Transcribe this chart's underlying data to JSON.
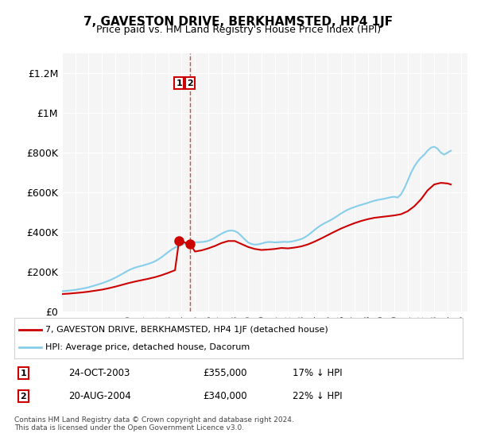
{
  "title": "7, GAVESTON DRIVE, BERKHAMSTED, HP4 1JF",
  "subtitle": "Price paid vs. HM Land Registry's House Price Index (HPI)",
  "ylabel_ticks": [
    "£0",
    "£200K",
    "£400K",
    "£600K",
    "£800K",
    "£1M",
    "£1.2M"
  ],
  "ytick_values": [
    0,
    200000,
    400000,
    600000,
    800000,
    1000000,
    1200000
  ],
  "ylim": [
    0,
    1300000
  ],
  "xlim_start": 1995.0,
  "xlim_end": 2025.5,
  "hpi_color": "#87CEEB",
  "price_color": "#CC0000",
  "dashed_line_color": "#CC0000",
  "background_color": "#f5f5f5",
  "legend_label_red": "7, GAVESTON DRIVE, BERKHAMSTED, HP4 1JF (detached house)",
  "legend_label_blue": "HPI: Average price, detached house, Dacorum",
  "transaction1_date": "24-OCT-2003",
  "transaction1_price": "£355,000",
  "transaction1_note": "17% ↓ HPI",
  "transaction2_date": "20-AUG-2004",
  "transaction2_price": "£340,000",
  "transaction2_note": "22% ↓ HPI",
  "footnote": "Contains HM Land Registry data © Crown copyright and database right 2024.\nThis data is licensed under the Open Government Licence v3.0.",
  "hpi_x": [
    1995.0,
    1995.25,
    1995.5,
    1995.75,
    1996.0,
    1996.25,
    1996.5,
    1996.75,
    1997.0,
    1997.25,
    1997.5,
    1997.75,
    1998.0,
    1998.25,
    1998.5,
    1998.75,
    1999.0,
    1999.25,
    1999.5,
    1999.75,
    2000.0,
    2000.25,
    2000.5,
    2000.75,
    2001.0,
    2001.25,
    2001.5,
    2001.75,
    2002.0,
    2002.25,
    2002.5,
    2002.75,
    2003.0,
    2003.25,
    2003.5,
    2003.75,
    2004.0,
    2004.25,
    2004.5,
    2004.75,
    2005.0,
    2005.25,
    2005.5,
    2005.75,
    2006.0,
    2006.25,
    2006.5,
    2006.75,
    2007.0,
    2007.25,
    2007.5,
    2007.75,
    2008.0,
    2008.25,
    2008.5,
    2008.75,
    2009.0,
    2009.25,
    2009.5,
    2009.75,
    2010.0,
    2010.25,
    2010.5,
    2010.75,
    2011.0,
    2011.25,
    2011.5,
    2011.75,
    2012.0,
    2012.25,
    2012.5,
    2012.75,
    2013.0,
    2013.25,
    2013.5,
    2013.75,
    2014.0,
    2014.25,
    2014.5,
    2014.75,
    2015.0,
    2015.25,
    2015.5,
    2015.75,
    2016.0,
    2016.25,
    2016.5,
    2016.75,
    2017.0,
    2017.25,
    2017.5,
    2017.75,
    2018.0,
    2018.25,
    2018.5,
    2018.75,
    2019.0,
    2019.25,
    2019.5,
    2019.75,
    2020.0,
    2020.25,
    2020.5,
    2020.75,
    2021.0,
    2021.25,
    2021.5,
    2021.75,
    2022.0,
    2022.25,
    2022.5,
    2022.75,
    2023.0,
    2023.25,
    2023.5,
    2023.75,
    2024.0,
    2024.25
  ],
  "hpi_y": [
    102000,
    103500,
    105000,
    107000,
    109000,
    112000,
    115000,
    118000,
    122000,
    127000,
    132000,
    137000,
    142000,
    148000,
    155000,
    162000,
    170000,
    179000,
    188000,
    198000,
    207000,
    215000,
    221000,
    226000,
    230000,
    235000,
    240000,
    246000,
    253000,
    263000,
    274000,
    287000,
    300000,
    312000,
    322000,
    330000,
    337000,
    342000,
    345000,
    348000,
    349000,
    349000,
    350000,
    352000,
    356000,
    363000,
    372000,
    382000,
    392000,
    400000,
    406000,
    408000,
    405000,
    396000,
    380000,
    363000,
    348000,
    340000,
    337000,
    338000,
    342000,
    347000,
    350000,
    350000,
    348000,
    349000,
    350000,
    351000,
    350000,
    352000,
    356000,
    360000,
    365000,
    373000,
    384000,
    397000,
    411000,
    424000,
    435000,
    445000,
    453000,
    462000,
    472000,
    483000,
    494000,
    504000,
    513000,
    520000,
    526000,
    532000,
    537000,
    542000,
    547000,
    553000,
    558000,
    562000,
    565000,
    568000,
    572000,
    576000,
    578000,
    574000,
    590000,
    620000,
    658000,
    698000,
    730000,
    755000,
    775000,
    790000,
    810000,
    825000,
    830000,
    820000,
    800000,
    790000,
    800000,
    810000
  ],
  "price_x": [
    1995.0,
    1995.5,
    1996.0,
    1996.5,
    1997.0,
    1997.5,
    1998.0,
    1998.5,
    1999.0,
    1999.5,
    2000.0,
    2000.5,
    2001.0,
    2001.5,
    2002.0,
    2002.5,
    2003.0,
    2003.5,
    2003.8,
    2004.0,
    2004.5,
    2004.65,
    2005.0,
    2005.5,
    2006.0,
    2006.5,
    2007.0,
    2007.5,
    2008.0,
    2008.5,
    2009.0,
    2009.5,
    2010.0,
    2010.5,
    2011.0,
    2011.5,
    2012.0,
    2012.5,
    2013.0,
    2013.5,
    2014.0,
    2014.5,
    2015.0,
    2015.5,
    2016.0,
    2016.5,
    2017.0,
    2017.5,
    2018.0,
    2018.5,
    2019.0,
    2019.5,
    2020.0,
    2020.5,
    2021.0,
    2021.5,
    2022.0,
    2022.5,
    2023.0,
    2023.5,
    2024.0,
    2024.25
  ],
  "price_y": [
    88000,
    90000,
    93000,
    96000,
    100000,
    105000,
    110000,
    117000,
    125000,
    134000,
    143000,
    151000,
    158000,
    165000,
    173000,
    183000,
    195000,
    208000,
    355000,
    355000,
    340000,
    340000,
    302000,
    308000,
    318000,
    330000,
    345000,
    355000,
    355000,
    340000,
    325000,
    315000,
    310000,
    312000,
    315000,
    320000,
    318000,
    322000,
    328000,
    338000,
    352000,
    368000,
    385000,
    402000,
    418000,
    432000,
    445000,
    456000,
    465000,
    472000,
    476000,
    480000,
    484000,
    490000,
    505000,
    530000,
    565000,
    610000,
    640000,
    648000,
    645000,
    640000
  ],
  "vline_x": 2004.65,
  "marker1_x": 2003.8,
  "marker1_y": 355000,
  "marker2_x": 2004.65,
  "marker2_y": 340000
}
